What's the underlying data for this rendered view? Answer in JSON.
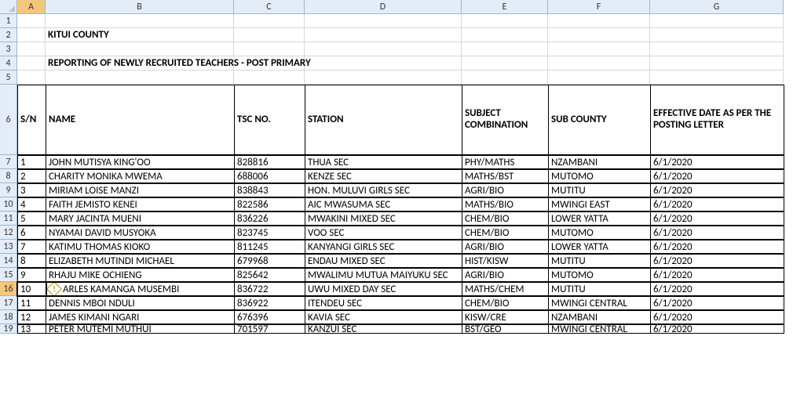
{
  "columns": [
    "A",
    "B",
    "C",
    "D",
    "E",
    "F",
    "G"
  ],
  "selected_col_index": 0,
  "selected_row_index": 15,
  "title_rows": {
    "county": "KITUI COUNTY",
    "report_title": "REPORTING OF NEWLY RECRUITED TEACHERS - POST PRIMARY"
  },
  "headers": {
    "sn": "S/N",
    "name": "NAME",
    "tsc": "TSC NO.",
    "station": "STATION",
    "subject": "SUBJECT COMBINATION",
    "subcounty": "SUB COUNTY",
    "effective": "EFFECTIVE DATE AS PER THE POSTING LETTER"
  },
  "rows": [
    {
      "sn": "1",
      "name": "JOHN MUTISYA KING'OO",
      "tsc": "828816",
      "station": "THUA SEC",
      "subject": "PHY/MATHS",
      "subcounty": "NZAMBANI",
      "date": "6/1/2020"
    },
    {
      "sn": "2",
      "name": "CHARITY MONIKA MWEMA",
      "tsc": "688006",
      "station": "KENZE SEC",
      "subject": "MATHS/BST",
      "subcounty": "MUTOMO",
      "date": "6/1/2020"
    },
    {
      "sn": "3",
      "name": "MIRIAM LOISE MANZI",
      "tsc": "838843",
      "station": "HON. MULUVI GIRLS SEC",
      "subject": "AGRI/BIO",
      "subcounty": "MUTITU",
      "date": "6/1/2020"
    },
    {
      "sn": "4",
      "name": "FAITH JEMISTO KENEI",
      "tsc": "822586",
      "station": "AIC MWASUMA SEC",
      "subject": "MATHS/BIO",
      "subcounty": "MWINGI EAST",
      "date": "6/1/2020"
    },
    {
      "sn": "5",
      "name": "MARY JACINTA MUENI",
      "tsc": "836226",
      "station": "MWAKINI MIXED SEC",
      "subject": "CHEM/BIO",
      "subcounty": "LOWER YATTA",
      "date": "6/1/2020"
    },
    {
      "sn": "6",
      "name": "NYAMAI DAVID MUSYOKA",
      "tsc": "823745",
      "station": "VOO SEC",
      "subject": "CHEM/BIO",
      "subcounty": "MUTOMO",
      "date": "6/1/2020"
    },
    {
      "sn": "7",
      "name": "KATIMU THOMAS KIOKO",
      "tsc": "811245",
      "station": "KANYANGI GIRLS SEC",
      "subject": "AGRI/BIO",
      "subcounty": "LOWER YATTA",
      "date": "6/1/2020"
    },
    {
      "sn": "8",
      "name": "ELIZABETH MUTINDI MICHAEL",
      "tsc": "679968",
      "station": "ENDAU MIXED SEC",
      "subject": "HIST/KISW",
      "subcounty": "MUTITU",
      "date": "6/1/2020"
    },
    {
      "sn": "9",
      "name": "RHAJU MIKE OCHIENG",
      "tsc": "825642",
      "station": "MWALIMU MUTUA MAIYUKU SEC",
      "subject": "AGRI/BIO",
      "subcounty": "MUTOMO",
      "date": "6/1/2020"
    },
    {
      "sn": "10",
      "name": "ARLES KAMANGA MUSEMBI",
      "tsc": "836722",
      "station": "UWU MIXED DAY SEC",
      "subject": "MATHS/CHEM",
      "subcounty": "MUTITU",
      "date": "6/1/2020",
      "smart_tag": true,
      "selected": true
    },
    {
      "sn": "11",
      "name": "DENNIS MBOI NDULI",
      "tsc": "836922",
      "station": "ITENDEU SEC",
      "subject": "CHEM/BIO",
      "subcounty": "MWINGI CENTRAL",
      "date": "6/1/2020"
    },
    {
      "sn": "12",
      "name": "JAMES KIMANI NGARI",
      "tsc": "676396",
      "station": "KAVIA SEC",
      "subject": "KISW/CRE",
      "subcounty": "NZAMBANI",
      "date": "6/1/2020"
    },
    {
      "sn": "13",
      "name": "PETER MUTEMI MUTHUI",
      "tsc": "701597",
      "station": "KANZUI SEC",
      "subject": "BST/GEO",
      "subcounty": "MWINGI CENTRAL",
      "date": "6/1/2020"
    }
  ],
  "row_numbers_start": 1,
  "colors": {
    "header_bg": "#e4ecf7",
    "header_border": "#9eb6ce",
    "selected_header_bg": "#f3c77b",
    "cell_border": "#d0d7e5",
    "data_border": "#000000"
  }
}
